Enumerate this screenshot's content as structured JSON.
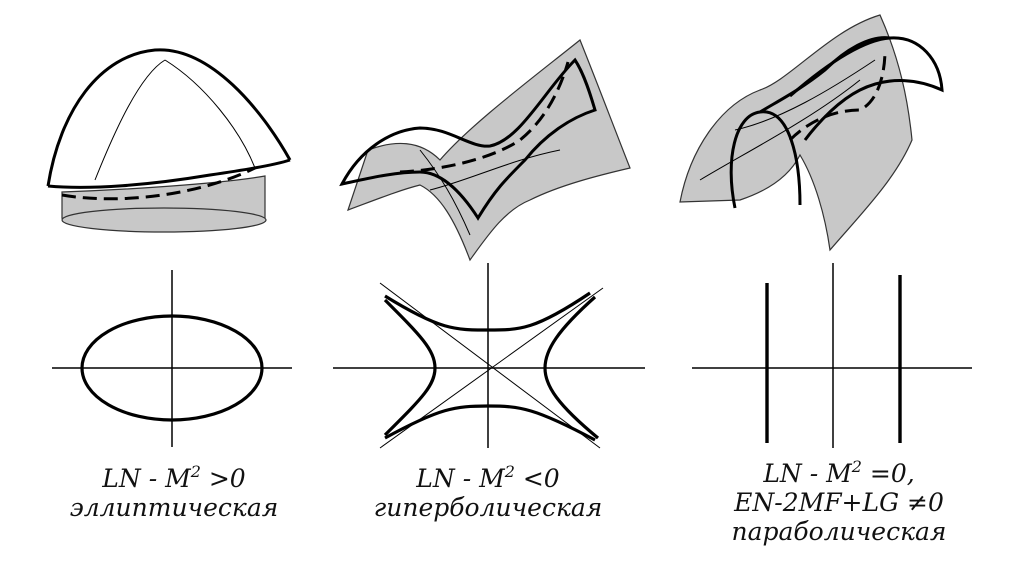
{
  "panels": [
    {
      "id": "elliptic",
      "condition": {
        "lhs": "LN - M",
        "exp": "2",
        "rhs": " >0"
      },
      "extra": "",
      "type_label": "эллиптическая"
    },
    {
      "id": "hyperbolic",
      "condition": {
        "lhs": "LN - M",
        "exp": "2",
        "rhs": " <0"
      },
      "extra": "",
      "type_label": "гиперболическая"
    },
    {
      "id": "parabolic",
      "condition": {
        "lhs": "LN - M",
        "exp": "2",
        "rhs": "  =0,"
      },
      "extra": "EN-2MF+LG ≠0",
      "type_label": "параболическая"
    }
  ],
  "colors": {
    "surface_fill": "#c8c8c8",
    "stroke": "#000000",
    "background": "#ffffff"
  }
}
